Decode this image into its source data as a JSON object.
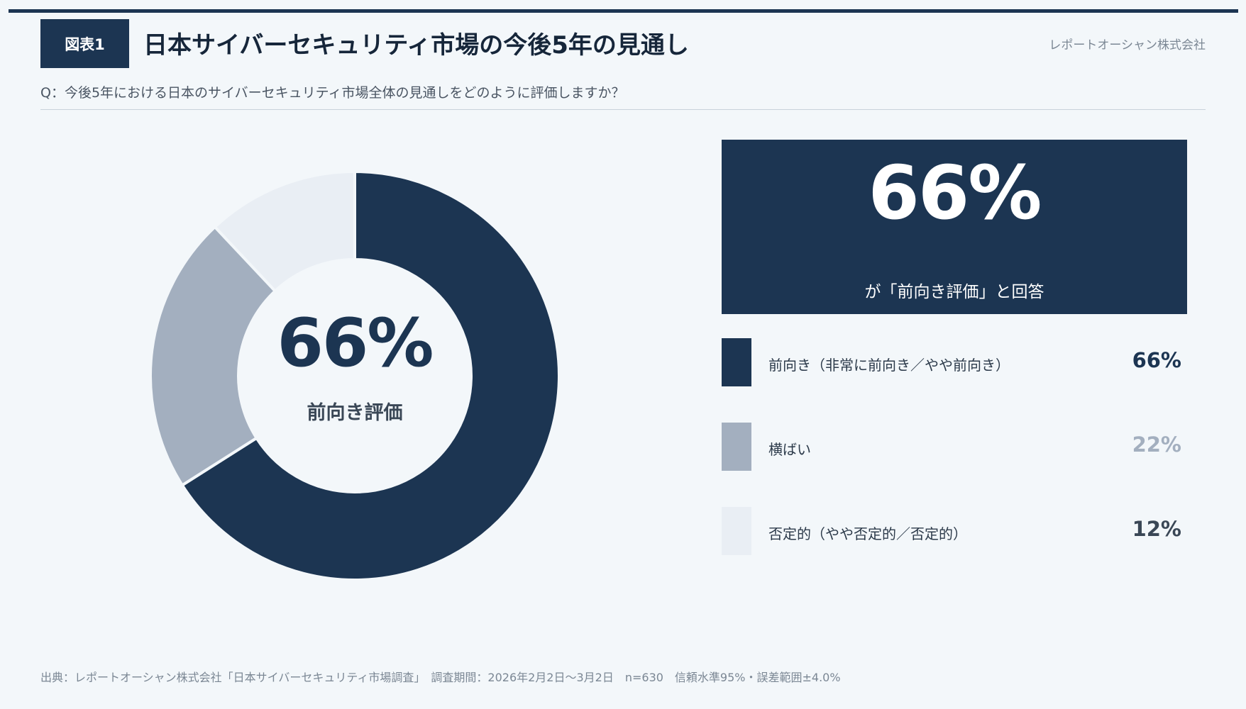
{
  "header": {
    "badge": "図表1",
    "title": "日本サイバーセキュリティ市場の今後5年の見通し",
    "company": "レポートオーシャン株式会社"
  },
  "question": "Q：今後5年における日本のサイバーセキュリティ市場全体の見通しをどのように評価しますか？",
  "chart_data": {
    "type": "pie",
    "categories": [
      "前向き（非常に前向き／やや前向き）",
      "横ばい",
      "否定的（やや否定的／否定的）"
    ],
    "values": [
      66,
      22,
      12
    ],
    "colors": [
      "#1c3552",
      "#a3afbf",
      "#e9eef4"
    ],
    "center_value": "66%",
    "center_label": "前向き評価"
  },
  "kpi": {
    "value": "66%",
    "caption": "が「前向き評価」と回答"
  },
  "legend": [
    {
      "label": "前向き（非常に前向き／やや前向き）",
      "value": "66%",
      "color": "#1c3552",
      "value_color": "#1c3552"
    },
    {
      "label": "横ばい",
      "value": "22%",
      "color": "#a3afbf",
      "value_color": "#a3afbf"
    },
    {
      "label": "否定的（やや否定的／否定的）",
      "value": "12%",
      "color": "#e9eef4",
      "value_color": "#3a4756"
    }
  ],
  "footer": "出典：レポートオーシャン株式会社「日本サイバーセキュリティ市場調査」　調査期間：2026年2月2日〜3月2日　n=630　信頼水準95%・誤差範囲±4.0%"
}
